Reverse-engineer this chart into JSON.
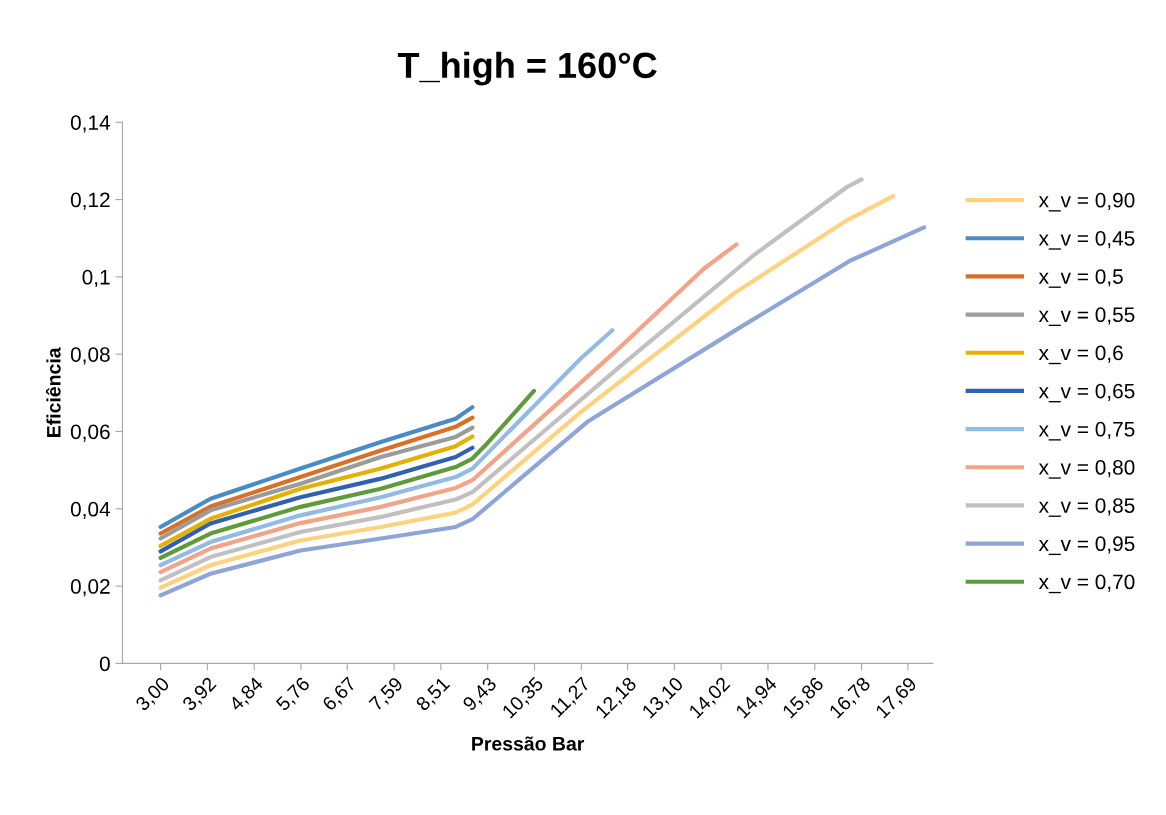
{
  "chart_data": {
    "type": "line",
    "title": "T_high = 160°C",
    "xlabel": "Pressão Bar",
    "ylabel": "Eficiência",
    "xlim": [
      2.25,
      18.18
    ],
    "xticks": [
      {
        "value": 3.0,
        "label": "3,00"
      },
      {
        "value": 3.92,
        "label": "3,92"
      },
      {
        "value": 4.84,
        "label": "4,84"
      },
      {
        "value": 5.76,
        "label": "5,76"
      },
      {
        "value": 6.67,
        "label": "6,67"
      },
      {
        "value": 7.59,
        "label": "7,59"
      },
      {
        "value": 8.51,
        "label": "8,51"
      },
      {
        "value": 9.43,
        "label": "9,43"
      },
      {
        "value": 10.35,
        "label": "10,35"
      },
      {
        "value": 11.27,
        "label": "11,27"
      },
      {
        "value": 12.18,
        "label": "12,18"
      },
      {
        "value": 13.1,
        "label": "13,10"
      },
      {
        "value": 14.02,
        "label": "14,02"
      },
      {
        "value": 14.94,
        "label": "14,94"
      },
      {
        "value": 15.86,
        "label": "15,86"
      },
      {
        "value": 16.78,
        "label": "16,78"
      },
      {
        "value": 17.69,
        "label": "17,69"
      }
    ],
    "ylim": [
      0,
      0.14
    ],
    "yticks": [
      0,
      {
        "value": 0.02,
        "label": "0,02"
      },
      {
        "value": 0.04,
        "label": "0,04"
      },
      {
        "value": 0.06,
        "label": "0,06"
      },
      {
        "value": 0.08,
        "label": "0,08"
      },
      {
        "value": 0.1,
        "label": "0,1"
      },
      {
        "value": 0.12,
        "label": "0,12"
      },
      {
        "value": 0.14,
        "label": "0,14"
      }
    ],
    "grid": false,
    "legend": "right",
    "marker": "none",
    "line_style": "solid",
    "series": [
      {
        "name": "x_v = 0,90",
        "color": "#ffd280",
        "x": [
          3.0,
          3.98,
          5.75,
          7.33,
          8.8,
          9.13,
          11.26,
          14.27,
          16.5,
          17.4
        ],
        "values": [
          0.0196,
          0.0254,
          0.0318,
          0.0353,
          0.039,
          0.0411,
          0.065,
          0.0957,
          0.1147,
          0.1209
        ]
      },
      {
        "name": "x_v = 0,45",
        "color": "#4a8bc4",
        "x": [
          3.0,
          3.98,
          5.75,
          7.33,
          8.8,
          9.13
        ],
        "values": [
          0.0353,
          0.0426,
          0.0504,
          0.0573,
          0.0633,
          0.0663
        ]
      },
      {
        "name": "x_v = 0,5",
        "color": "#d9702a",
        "x": [
          3.0,
          3.98,
          5.75,
          7.33,
          8.8,
          9.13
        ],
        "values": [
          0.0336,
          0.0406,
          0.0482,
          0.0551,
          0.0612,
          0.0636
        ]
      },
      {
        "name": "x_v = 0,55",
        "color": "#9b9b9b",
        "x": [
          3.0,
          3.98,
          5.75,
          7.33,
          8.8,
          9.13
        ],
        "values": [
          0.0323,
          0.0396,
          0.0465,
          0.0534,
          0.0586,
          0.061
        ]
      },
      {
        "name": "x_v = 0,6",
        "color": "#e6b000",
        "x": [
          3.0,
          3.98,
          5.75,
          7.33,
          8.8,
          9.13
        ],
        "values": [
          0.0304,
          0.0374,
          0.0452,
          0.0504,
          0.0562,
          0.0587
        ]
      },
      {
        "name": "x_v = 0,65",
        "color": "#3060b0",
        "x": [
          3.0,
          3.98,
          5.75,
          7.33,
          8.8,
          9.13
        ],
        "values": [
          0.029,
          0.0362,
          0.043,
          0.0478,
          0.0534,
          0.0558
        ]
      },
      {
        "name": "x_v = 0,75",
        "color": "#92bae4",
        "x": [
          3.0,
          3.98,
          5.75,
          7.33,
          8.8,
          9.13,
          11.26,
          11.88
        ],
        "values": [
          0.0254,
          0.0314,
          0.0383,
          0.043,
          0.0482,
          0.0504,
          0.0789,
          0.0862
        ]
      },
      {
        "name": "x_v = 0,80",
        "color": "#f2a488",
        "x": [
          3.0,
          3.98,
          5.75,
          7.33,
          8.8,
          9.13,
          12.04,
          13.68,
          14.32
        ],
        "values": [
          0.0236,
          0.0297,
          0.0363,
          0.0405,
          0.0454,
          0.0474,
          0.0819,
          0.1021,
          0.1084
        ]
      },
      {
        "name": "x_v = 0,85",
        "color": "#c0c0c0",
        "x": [
          3.0,
          3.98,
          5.75,
          7.33,
          8.8,
          9.13,
          12.04,
          14.66,
          16.5,
          16.78
        ],
        "values": [
          0.0215,
          0.0275,
          0.034,
          0.0379,
          0.0424,
          0.0443,
          0.0769,
          0.1056,
          0.1233,
          0.1252
        ]
      },
      {
        "name": "x_v = 0,95",
        "color": "#8fa5d8",
        "x": [
          3.0,
          3.98,
          5.75,
          7.33,
          8.8,
          9.13,
          11.39,
          14.4,
          16.57,
          17.02,
          18.01
        ],
        "values": [
          0.0176,
          0.0232,
          0.0292,
          0.0323,
          0.0353,
          0.0373,
          0.0625,
          0.087,
          0.1043,
          0.1069,
          0.1128
        ]
      },
      {
        "name": "x_v = 0,70",
        "color": "#5e9b3a",
        "x": [
          3.0,
          3.98,
          5.75,
          7.33,
          8.8,
          9.13,
          9.42,
          10.34
        ],
        "values": [
          0.0273,
          0.0336,
          0.0405,
          0.0452,
          0.0508,
          0.053,
          0.0569,
          0.0705
        ]
      }
    ]
  }
}
